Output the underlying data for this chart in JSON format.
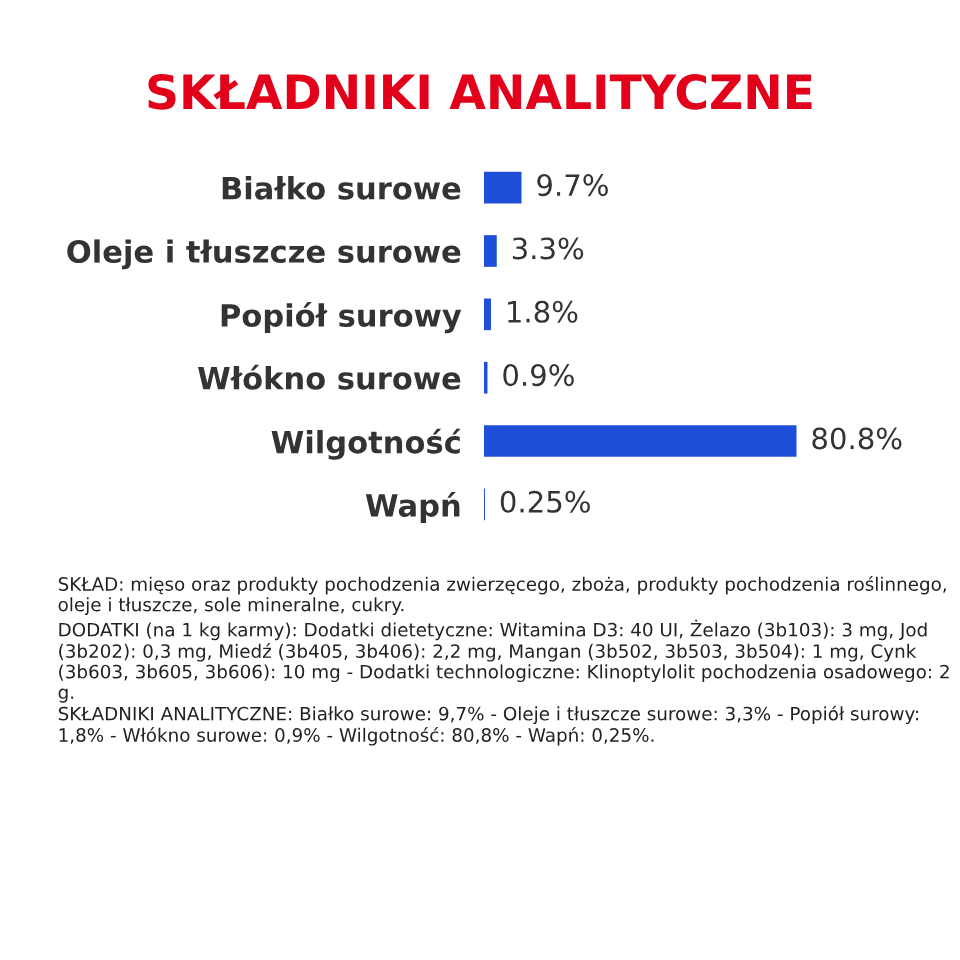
{
  "chart_data": {
    "type": "bar",
    "orientation": "horizontal",
    "title": "SKŁADNIKI ANALITYCZNE",
    "categories": [
      "Białko surowe",
      "Oleje i tłuszcze surowe",
      "Popiół surowy",
      "Włókno surowe",
      "Wilgotność",
      "Wapń"
    ],
    "values": [
      9.7,
      3.3,
      1.8,
      0.9,
      80.8,
      0.25
    ],
    "value_labels": [
      "9.7%",
      "3.3%",
      "1.8%",
      "0.9%",
      "80.8%",
      "0.25%"
    ],
    "color": "#1f4fd8",
    "annotations": [
      "SKŁAD: mięso oraz produkty pochodzenia zwierzęcego, zboża, produkty pochodzenia roślinnego, oleje i tłuszcze, sole mineralne, cukry.",
      "DODATKI (na 1 kg karmy): Dodatki dietetyczne: Witamina D3: 40 UI, Żelazo (3b103): 3 mg, Jod (3b202): 0,3 mg, Miedź (3b405, 3b406): 2,2 mg, Mangan (3b502, 3b503, 3b504): 1 mg, Cynk (3b603, 3b605, 3b606): 10 mg - Dodatki technologiczne: Klinoptylolit pochodzenia osadowego: 2 g.",
      "SKŁADNIKI ANALITYCZNE: Białko surowe: 9,7% - Oleje i tłuszcze surowe: 3,3% - Popiół surowy: 1,8% - Włókno surowe: 0,9% - Wilgotność: 80,8% - Wapń: 0,25%."
    ]
  }
}
